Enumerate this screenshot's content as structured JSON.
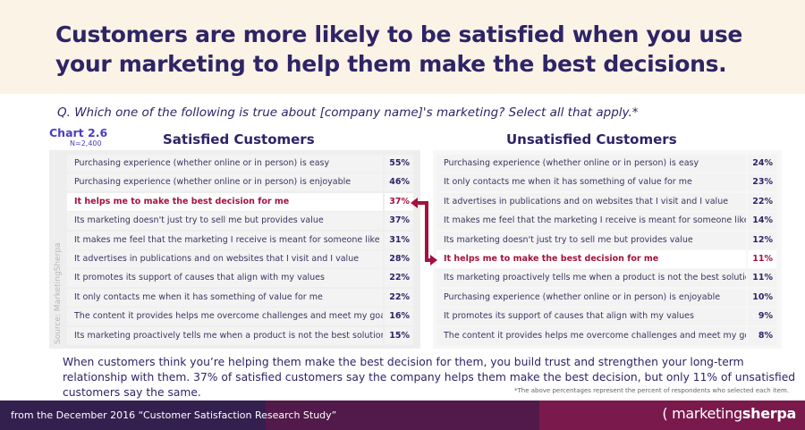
{
  "header": {
    "title": "Customers are more likely to be satisfied when you use your marketing to help them make the best decisions."
  },
  "question": "Q. Which one of the following is true about [company name]'s marketing? Select all that apply.*",
  "chart_label": "Chart 2.6",
  "sample_size": "N=2,400",
  "source": "Source: MarketingSherpa",
  "colors": {
    "title": "#2e2466",
    "highlight": "#a3123d",
    "footer": "#34204f"
  },
  "chart_data": {
    "type": "table",
    "tables": [
      {
        "title": "Satisfied Customers",
        "highlight_index": 2,
        "rows": [
          {
            "label": "Purchasing experience (whether online or in person) is easy",
            "value": "55%"
          },
          {
            "label": "Purchasing experience (whether online or in person) is enjoyable",
            "value": "46%"
          },
          {
            "label": "It helps me to make the best decision for me",
            "value": "37%"
          },
          {
            "label": "Its marketing doesn't just try to sell me but provides value",
            "value": "37%"
          },
          {
            "label": "It makes me feel that the marketing I receive is meant for someone like me",
            "value": "31%"
          },
          {
            "label": "It advertises in publications and on websites that I visit and I value",
            "value": "28%"
          },
          {
            "label": "It promotes its support of causes that align with my values",
            "value": "22%"
          },
          {
            "label": "It only contacts me when it has something of value for me",
            "value": "22%"
          },
          {
            "label": "The content it provides helps me overcome challenges and meet my goals",
            "value": "16%"
          },
          {
            "label": "Its marketing proactively tells me when a product is not the best solution for me",
            "value": "15%"
          }
        ]
      },
      {
        "title": "Unsatisfied Customers",
        "highlight_index": 5,
        "rows": [
          {
            "label": "Purchasing experience (whether online or in person) is easy",
            "value": "24%"
          },
          {
            "label": "It only contacts me when it has something of value for me",
            "value": "23%"
          },
          {
            "label": "It advertises in publications and on websites that I visit and I value",
            "value": "22%"
          },
          {
            "label": "It makes me feel that the marketing I receive is meant for someone like me",
            "value": "14%"
          },
          {
            "label": "Its marketing doesn't just try to sell me but provides value",
            "value": "12%"
          },
          {
            "label": "It helps me to make the best decision for me",
            "value": "11%"
          },
          {
            "label": "Its marketing proactively tells me when a product is not the best solution for me",
            "value": "11%"
          },
          {
            "label": "Purchasing experience (whether online or in person) is enjoyable",
            "value": "10%"
          },
          {
            "label": "It promotes its support of causes that align with my values",
            "value": "9%"
          },
          {
            "label": "The content it provides helps me overcome challenges and meet my goals",
            "value": "8%"
          }
        ]
      }
    ]
  },
  "summary": "When customers think you’re helping them make the best decision for them, you build trust and strengthen your long-term relationship with them. 37% of satisfied customers say the company helps them make the best decision, but only 11% of unsatisfied customers say the same.",
  "footnote": "*The above percentages represent the percent of respondents who selected each item.",
  "footer": {
    "text": "from the December 2016 “Customer Satisfaction Research Study”",
    "logo_a": "marketing",
    "logo_b": "sherpa"
  }
}
